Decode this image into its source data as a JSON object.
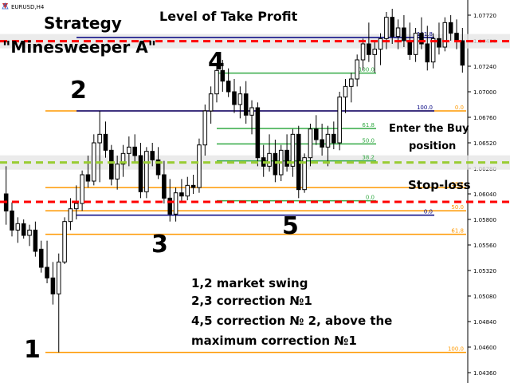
{
  "window": {
    "symbol_title": "EURUSD,H4"
  },
  "price_axis": {
    "labels": [
      "1.07720",
      "1.07480",
      "1.07240",
      "1.07000",
      "1.06760",
      "1.06520",
      "1.06280",
      "1.06040",
      "1.05800",
      "1.05560",
      "1.05320",
      "1.05080",
      "1.04840",
      "1.04600",
      "1.04360"
    ]
  },
  "annotations": {
    "strategy_line1": "Strategy",
    "strategy_line2": "\"Minesweeper A\"",
    "take_profit": "Level of Take Profit",
    "enter_buy_line1": "Enter the Buy",
    "enter_buy_line2": "position",
    "stop_loss": "Stop-loss",
    "notes": [
      "1,2 market swing",
      "2,3 correction №1",
      "4,5 correction № 2, above the",
      "maximum correction №1"
    ],
    "point_labels": [
      "1",
      "2",
      "3",
      "4",
      "5"
    ]
  },
  "fibo_primary": {
    "color": "#ff9900",
    "levels": [
      {
        "label": "0.0",
        "price": 1.0682
      },
      {
        "label": "38.2",
        "price": 1.061
      },
      {
        "label": "50.0",
        "price": 1.05882
      },
      {
        "label": "61.8",
        "price": 1.0566
      },
      {
        "label": "100.0",
        "price": 1.0455
      }
    ]
  },
  "fibo_secondary": {
    "color": "#33aa44",
    "levels": [
      {
        "label": "100.0",
        "price": 1.07175
      },
      {
        "label": "61.8",
        "price": 1.06655
      },
      {
        "label": "50.0",
        "price": 1.0651
      },
      {
        "label": "38.2",
        "price": 1.0635
      },
      {
        "label": "0.0",
        "price": 1.05975
      }
    ]
  },
  "fibo_blue": {
    "color": "#000080",
    "levels": [
      {
        "label": "161.8",
        "price": 1.0751
      },
      {
        "label": "100.0",
        "price": 1.0682
      },
      {
        "label": "0.0",
        "price": 1.0584
      }
    ]
  },
  "dashed_levels": {
    "take_profit_price": 1.07475,
    "entry_price": 1.06335,
    "stop_loss_price": 1.05965,
    "red_color": "#ff0000",
    "green_color": "#99cc33"
  },
  "chart_data": {
    "type": "candlestick",
    "symbol": "EURUSD",
    "timeframe": "H4",
    "ylim": [
      1.043,
      1.078
    ],
    "candles": [
      {
        "o": 1.0604,
        "h": 1.063,
        "l": 1.0575,
        "c": 1.0588
      },
      {
        "o": 1.0588,
        "h": 1.0596,
        "l": 1.0564,
        "c": 1.057
      },
      {
        "o": 1.057,
        "h": 1.0582,
        "l": 1.0558,
        "c": 1.0576
      },
      {
        "o": 1.0576,
        "h": 1.058,
        "l": 1.0562,
        "c": 1.0565
      },
      {
        "o": 1.0565,
        "h": 1.0575,
        "l": 1.0555,
        "c": 1.057
      },
      {
        "o": 1.057,
        "h": 1.0578,
        "l": 1.0545,
        "c": 1.055
      },
      {
        "o": 1.0552,
        "h": 1.056,
        "l": 1.053,
        "c": 1.0535
      },
      {
        "o": 1.0535,
        "h": 1.056,
        "l": 1.052,
        "c": 1.0525
      },
      {
        "o": 1.0525,
        "h": 1.054,
        "l": 1.05,
        "c": 1.051
      },
      {
        "o": 1.051,
        "h": 1.0548,
        "l": 1.0455,
        "c": 1.054
      },
      {
        "o": 1.054,
        "h": 1.0582,
        "l": 1.0538,
        "c": 1.0578
      },
      {
        "o": 1.0578,
        "h": 1.06,
        "l": 1.057,
        "c": 1.059
      },
      {
        "o": 1.059,
        "h": 1.0612,
        "l": 1.058,
        "c": 1.0595
      },
      {
        "o": 1.0595,
        "h": 1.0626,
        "l": 1.0588,
        "c": 1.0622
      },
      {
        "o": 1.0622,
        "h": 1.064,
        "l": 1.061,
        "c": 1.0616
      },
      {
        "o": 1.0616,
        "h": 1.066,
        "l": 1.0612,
        "c": 1.0652
      },
      {
        "o": 1.0652,
        "h": 1.0682,
        "l": 1.0615,
        "c": 1.066
      },
      {
        "o": 1.066,
        "h": 1.0672,
        "l": 1.0638,
        "c": 1.0645
      },
      {
        "o": 1.0645,
        "h": 1.065,
        "l": 1.0612,
        "c": 1.0618
      },
      {
        "o": 1.0618,
        "h": 1.064,
        "l": 1.0608,
        "c": 1.0632
      },
      {
        "o": 1.0632,
        "h": 1.065,
        "l": 1.062,
        "c": 1.0642
      },
      {
        "o": 1.0642,
        "h": 1.0658,
        "l": 1.063,
        "c": 1.0648
      },
      {
        "o": 1.0648,
        "h": 1.066,
        "l": 1.0634,
        "c": 1.064
      },
      {
        "o": 1.064,
        "h": 1.0652,
        "l": 1.06,
        "c": 1.0606
      },
      {
        "o": 1.0606,
        "h": 1.0648,
        "l": 1.06,
        "c": 1.0644
      },
      {
        "o": 1.0644,
        "h": 1.0652,
        "l": 1.063,
        "c": 1.0636
      },
      {
        "o": 1.0636,
        "h": 1.0648,
        "l": 1.0618,
        "c": 1.0622
      },
      {
        "o": 1.0622,
        "h": 1.0635,
        "l": 1.0595,
        "c": 1.06
      },
      {
        "o": 1.06,
        "h": 1.0618,
        "l": 1.0578,
        "c": 1.0585
      },
      {
        "o": 1.0585,
        "h": 1.061,
        "l": 1.0578,
        "c": 1.0605
      },
      {
        "o": 1.0605,
        "h": 1.0618,
        "l": 1.0596,
        "c": 1.0602
      },
      {
        "o": 1.0602,
        "h": 1.062,
        "l": 1.0598,
        "c": 1.0612
      },
      {
        "o": 1.0612,
        "h": 1.0622,
        "l": 1.0604,
        "c": 1.061
      },
      {
        "o": 1.061,
        "h": 1.0656,
        "l": 1.0605,
        "c": 1.065
      },
      {
        "o": 1.065,
        "h": 1.0688,
        "l": 1.064,
        "c": 1.0682
      },
      {
        "o": 1.0682,
        "h": 1.0705,
        "l": 1.067,
        "c": 1.0698
      },
      {
        "o": 1.0698,
        "h": 1.0725,
        "l": 1.069,
        "c": 1.072
      },
      {
        "o": 1.072,
        "h": 1.073,
        "l": 1.07,
        "c": 1.071
      },
      {
        "o": 1.071,
        "h": 1.0722,
        "l": 1.0695,
        "c": 1.07
      },
      {
        "o": 1.07,
        "h": 1.0712,
        "l": 1.068,
        "c": 1.0688
      },
      {
        "o": 1.0688,
        "h": 1.0705,
        "l": 1.0675,
        "c": 1.0698
      },
      {
        "o": 1.0698,
        "h": 1.071,
        "l": 1.067,
        "c": 1.0678
      },
      {
        "o": 1.0678,
        "h": 1.0692,
        "l": 1.066,
        "c": 1.0685
      },
      {
        "o": 1.0685,
        "h": 1.069,
        "l": 1.063,
        "c": 1.0638
      },
      {
        "o": 1.0638,
        "h": 1.065,
        "l": 1.062,
        "c": 1.063
      },
      {
        "o": 1.063,
        "h": 1.066,
        "l": 1.0625,
        "c": 1.0642
      },
      {
        "o": 1.0642,
        "h": 1.0655,
        "l": 1.0615,
        "c": 1.0622
      },
      {
        "o": 1.0622,
        "h": 1.065,
        "l": 1.0616,
        "c": 1.0645
      },
      {
        "o": 1.0645,
        "h": 1.066,
        "l": 1.0625,
        "c": 1.063
      },
      {
        "o": 1.063,
        "h": 1.0665,
        "l": 1.062,
        "c": 1.066
      },
      {
        "o": 1.066,
        "h": 1.0668,
        "l": 1.06,
        "c": 1.0608
      },
      {
        "o": 1.0608,
        "h": 1.0642,
        "l": 1.0605,
        "c": 1.0638
      },
      {
        "o": 1.0638,
        "h": 1.067,
        "l": 1.063,
        "c": 1.0665
      },
      {
        "o": 1.0665,
        "h": 1.0678,
        "l": 1.065,
        "c": 1.0655
      },
      {
        "o": 1.0655,
        "h": 1.067,
        "l": 1.064,
        "c": 1.0648
      },
      {
        "o": 1.0648,
        "h": 1.0668,
        "l": 1.063,
        "c": 1.066
      },
      {
        "o": 1.066,
        "h": 1.0672,
        "l": 1.0646,
        "c": 1.0652
      },
      {
        "o": 1.0652,
        "h": 1.07,
        "l": 1.0645,
        "c": 1.0695
      },
      {
        "o": 1.0695,
        "h": 1.0712,
        "l": 1.068,
        "c": 1.0705
      },
      {
        "o": 1.0705,
        "h": 1.0718,
        "l": 1.069,
        "c": 1.0712
      },
      {
        "o": 1.0712,
        "h": 1.0735,
        "l": 1.0705,
        "c": 1.073
      },
      {
        "o": 1.073,
        "h": 1.075,
        "l": 1.072,
        "c": 1.0745
      },
      {
        "o": 1.0745,
        "h": 1.0765,
        "l": 1.0728,
        "c": 1.0735
      },
      {
        "o": 1.0735,
        "h": 1.0748,
        "l": 1.0718,
        "c": 1.074
      },
      {
        "o": 1.074,
        "h": 1.0755,
        "l": 1.0725,
        "c": 1.075
      },
      {
        "o": 1.075,
        "h": 1.0775,
        "l": 1.074,
        "c": 1.077
      },
      {
        "o": 1.077,
        "h": 1.0778,
        "l": 1.0745,
        "c": 1.0752
      },
      {
        "o": 1.0752,
        "h": 1.0768,
        "l": 1.074,
        "c": 1.076
      },
      {
        "o": 1.076,
        "h": 1.0772,
        "l": 1.0742,
        "c": 1.0748
      },
      {
        "o": 1.0748,
        "h": 1.0765,
        "l": 1.073,
        "c": 1.0735
      },
      {
        "o": 1.0735,
        "h": 1.076,
        "l": 1.0728,
        "c": 1.0755
      },
      {
        "o": 1.0755,
        "h": 1.077,
        "l": 1.074,
        "c": 1.0745
      },
      {
        "o": 1.0745,
        "h": 1.0762,
        "l": 1.072,
        "c": 1.0728
      },
      {
        "o": 1.0728,
        "h": 1.0755,
        "l": 1.0722,
        "c": 1.075
      },
      {
        "o": 1.075,
        "h": 1.0765,
        "l": 1.0735,
        "c": 1.0742
      },
      {
        "o": 1.0742,
        "h": 1.077,
        "l": 1.0738,
        "c": 1.0765
      },
      {
        "o": 1.0765,
        "h": 1.0772,
        "l": 1.0748,
        "c": 1.0755
      },
      {
        "o": 1.0755,
        "h": 1.0768,
        "l": 1.074,
        "c": 1.0748
      },
      {
        "o": 1.0748,
        "h": 1.076,
        "l": 1.0718,
        "c": 1.0725
      }
    ]
  }
}
